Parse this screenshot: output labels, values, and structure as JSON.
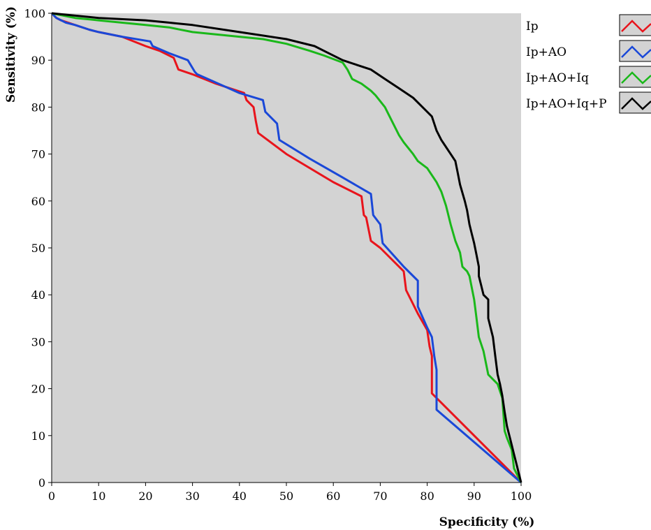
{
  "chart_data": {
    "type": "line",
    "title": "",
    "xlabel": "Specificity (%)",
    "ylabel": "Sensitivity (%)",
    "xlim": [
      0,
      100
    ],
    "ylim": [
      0,
      100
    ],
    "x_ticks": [
      "0",
      "10",
      "20",
      "30",
      "40",
      "50",
      "60",
      "70",
      "80",
      "90",
      "100"
    ],
    "y_ticks": [
      "0",
      "10",
      "20",
      "30",
      "40",
      "50",
      "60",
      "70",
      "80",
      "90",
      "100"
    ],
    "grid": false,
    "plot_background": "#d3d3d3",
    "legend_position": "right",
    "series": [
      {
        "name": "Ip",
        "color": "#e8141c",
        "points": [
          [
            0,
            100
          ],
          [
            1,
            99
          ],
          [
            2,
            98.5
          ],
          [
            5,
            97.5
          ],
          [
            8,
            96.5
          ],
          [
            10,
            96
          ],
          [
            15,
            95
          ],
          [
            20,
            93
          ],
          [
            23,
            92
          ],
          [
            26,
            90.5
          ],
          [
            27,
            88
          ],
          [
            30,
            87
          ],
          [
            35,
            85
          ],
          [
            41,
            83
          ],
          [
            41.5,
            81.5
          ],
          [
            42,
            81
          ],
          [
            43,
            80
          ],
          [
            43.5,
            77
          ],
          [
            44,
            74.5
          ],
          [
            50,
            70
          ],
          [
            60,
            64
          ],
          [
            66,
            61
          ],
          [
            66.5,
            57
          ],
          [
            67,
            56.5
          ],
          [
            68,
            51.5
          ],
          [
            70,
            50
          ],
          [
            75,
            45
          ],
          [
            75.5,
            41
          ],
          [
            78,
            36
          ],
          [
            80,
            32.5
          ],
          [
            80.5,
            29
          ],
          [
            81,
            27
          ],
          [
            81,
            19
          ],
          [
            82,
            18
          ],
          [
            100,
            0
          ]
        ]
      },
      {
        "name": "Ip+AO",
        "color": "#1a48d8",
        "points": [
          [
            0,
            100
          ],
          [
            1,
            99
          ],
          [
            3,
            98
          ],
          [
            5,
            97.5
          ],
          [
            8,
            96.5
          ],
          [
            10,
            96
          ],
          [
            15,
            95
          ],
          [
            21,
            94
          ],
          [
            21.5,
            93
          ],
          [
            25,
            91.5
          ],
          [
            29,
            90
          ],
          [
            30.5,
            87.5
          ],
          [
            31,
            87
          ],
          [
            40,
            83
          ],
          [
            45,
            81.5
          ],
          [
            45.5,
            79
          ],
          [
            48,
            76.5
          ],
          [
            48.5,
            73
          ],
          [
            55,
            69
          ],
          [
            62,
            65
          ],
          [
            68,
            61.5
          ],
          [
            68.5,
            57
          ],
          [
            70,
            55
          ],
          [
            70.5,
            51
          ],
          [
            75,
            46
          ],
          [
            78,
            43
          ],
          [
            78,
            37.5
          ],
          [
            80,
            33
          ],
          [
            81,
            31
          ],
          [
            81.5,
            27
          ],
          [
            82,
            24
          ],
          [
            82,
            15.5
          ],
          [
            100,
            0
          ]
        ]
      },
      {
        "name": "Ip+AO+Iq",
        "color": "#1ab81a",
        "points": [
          [
            0,
            100
          ],
          [
            5,
            99
          ],
          [
            10,
            98.5
          ],
          [
            20,
            97.5
          ],
          [
            25,
            97
          ],
          [
            30,
            96
          ],
          [
            40,
            95
          ],
          [
            45,
            94.5
          ],
          [
            50,
            93.5
          ],
          [
            55,
            92
          ],
          [
            58,
            91
          ],
          [
            62,
            89.5
          ],
          [
            63,
            88
          ],
          [
            64,
            86
          ],
          [
            66,
            85
          ],
          [
            68,
            83.5
          ],
          [
            69,
            82.5
          ],
          [
            71,
            80
          ],
          [
            72,
            78
          ],
          [
            74,
            74
          ],
          [
            75,
            72.5
          ],
          [
            77,
            70
          ],
          [
            78,
            68.5
          ],
          [
            80,
            67
          ],
          [
            82,
            64
          ],
          [
            83,
            62
          ],
          [
            84,
            59
          ],
          [
            85,
            55
          ],
          [
            86,
            51.5
          ],
          [
            87,
            49
          ],
          [
            87.5,
            46
          ],
          [
            88.5,
            45
          ],
          [
            89,
            44
          ],
          [
            90,
            39
          ],
          [
            90.5,
            35
          ],
          [
            91,
            31
          ],
          [
            92,
            28
          ],
          [
            93,
            23
          ],
          [
            94,
            22
          ],
          [
            95,
            21
          ],
          [
            96,
            18
          ],
          [
            96.5,
            11
          ],
          [
            97,
            9.5
          ],
          [
            98,
            7
          ],
          [
            98.5,
            3
          ],
          [
            100,
            0
          ]
        ]
      },
      {
        "name": "Ip+AO+Iq+P",
        "color": "#000000",
        "points": [
          [
            0,
            100
          ],
          [
            10,
            99
          ],
          [
            20,
            98.5
          ],
          [
            25,
            98
          ],
          [
            30,
            97.5
          ],
          [
            40,
            96
          ],
          [
            50,
            94.5
          ],
          [
            56,
            93
          ],
          [
            58,
            92
          ],
          [
            62,
            90
          ],
          [
            65,
            89
          ],
          [
            68,
            88
          ],
          [
            71,
            86
          ],
          [
            74,
            84
          ],
          [
            77,
            82
          ],
          [
            79,
            80
          ],
          [
            81,
            78
          ],
          [
            82,
            75
          ],
          [
            83,
            73
          ],
          [
            84,
            71.5
          ],
          [
            85,
            70
          ],
          [
            86,
            68.5
          ],
          [
            86.5,
            66
          ],
          [
            87,
            63.5
          ],
          [
            88,
            60
          ],
          [
            88.5,
            58
          ],
          [
            89,
            55
          ],
          [
            89.5,
            53
          ],
          [
            90,
            51
          ],
          [
            90.5,
            48.5
          ],
          [
            91,
            46
          ],
          [
            91,
            44
          ],
          [
            91.5,
            42
          ],
          [
            92,
            40
          ],
          [
            93,
            39
          ],
          [
            93,
            35
          ],
          [
            93.5,
            33
          ],
          [
            94,
            31
          ],
          [
            94.5,
            27
          ],
          [
            95,
            23
          ],
          [
            95.5,
            21
          ],
          [
            96,
            18.5
          ],
          [
            96.5,
            15
          ],
          [
            97,
            12
          ],
          [
            97.5,
            10
          ],
          [
            98,
            8
          ],
          [
            98.5,
            6
          ],
          [
            99,
            4
          ],
          [
            100,
            0
          ]
        ]
      }
    ]
  }
}
